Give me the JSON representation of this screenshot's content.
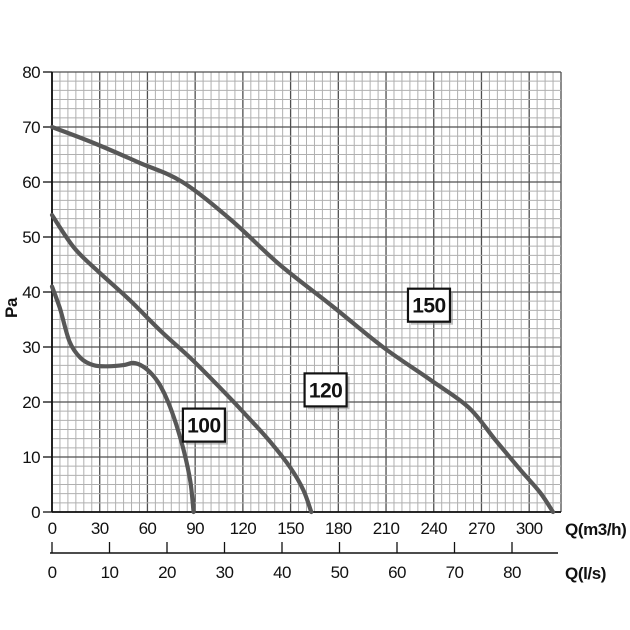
{
  "chart_data": {
    "type": "line",
    "title": "",
    "xlabel": "Q(m3/h)",
    "xlabel2": "Q(l/s)",
    "ylabel": "Pa",
    "grid": "on",
    "x_axis": {
      "label": "Q(m3/h)",
      "ticks": [
        0,
        30,
        60,
        90,
        120,
        150,
        180,
        210,
        240,
        270,
        300
      ],
      "range": [
        0,
        320
      ],
      "minor_step": 5
    },
    "x_axis2": {
      "label": "Q(l/s)",
      "ticks": [
        0,
        10,
        20,
        30,
        40,
        50,
        60,
        70,
        80
      ]
    },
    "y_axis": {
      "label": "Pa",
      "ticks": [
        0,
        10,
        20,
        30,
        40,
        50,
        60,
        70,
        80
      ],
      "range": [
        0,
        80
      ],
      "minor_per_major": 6
    },
    "series": [
      {
        "name": "100",
        "points": [
          [
            0,
            41
          ],
          [
            5,
            37
          ],
          [
            11,
            31
          ],
          [
            18,
            28
          ],
          [
            26,
            26.7
          ],
          [
            35,
            26.5
          ],
          [
            45,
            26.7
          ],
          [
            51,
            27.1
          ],
          [
            57,
            26.5
          ],
          [
            63,
            25
          ],
          [
            68,
            23
          ],
          [
            73,
            20
          ],
          [
            78,
            16
          ],
          [
            83,
            11
          ],
          [
            87,
            5.5
          ],
          [
            89,
            0
          ]
        ]
      },
      {
        "name": "120",
        "points": [
          [
            0,
            54
          ],
          [
            14,
            48
          ],
          [
            30,
            43.5
          ],
          [
            49,
            38.5
          ],
          [
            68,
            33
          ],
          [
            87,
            28
          ],
          [
            106,
            22.5
          ],
          [
            124,
            17
          ],
          [
            138,
            12.5
          ],
          [
            150,
            8
          ],
          [
            158,
            4
          ],
          [
            163,
            0
          ]
        ]
      },
      {
        "name": "150",
        "points": [
          [
            0,
            70
          ],
          [
            27,
            67
          ],
          [
            55,
            63.5
          ],
          [
            82,
            60
          ],
          [
            113,
            53
          ],
          [
            143,
            45
          ],
          [
            176,
            37.5
          ],
          [
            208,
            30
          ],
          [
            238,
            24
          ],
          [
            262,
            19
          ],
          [
            279,
            13
          ],
          [
            295,
            7.5
          ],
          [
            307,
            3.5
          ],
          [
            315,
            0
          ]
        ]
      }
    ],
    "curve_labels": [
      {
        "text": "100",
        "q": 95.5,
        "pa": 15.8
      },
      {
        "text": "120",
        "q": 172,
        "pa": 22.2
      },
      {
        "text": "150",
        "q": 237,
        "pa": 37.6
      }
    ]
  },
  "colors": {
    "background": "#ffffff",
    "curve": "#575757",
    "grid_minor": "#b0b0b0",
    "grid_major": "#4f4f4f",
    "axis": "#111111",
    "text": "#111111",
    "label_box_fill": "#ffffff",
    "label_box_border": "#111111",
    "label_box_shadow": "#8a8a8a"
  }
}
